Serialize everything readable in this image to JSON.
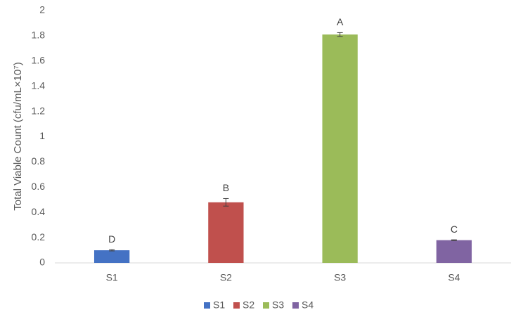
{
  "chart_data": {
    "type": "bar",
    "y_label": "Total Viable Count (cfu/mL×10⁷)",
    "categories": [
      "S1",
      "S2",
      "S3",
      "S4"
    ],
    "values": [
      0.1,
      0.48,
      1.81,
      0.18
    ],
    "errors": [
      0.005,
      0.03,
      0.015,
      0.003
    ],
    "annotations": [
      "D",
      "B",
      "A",
      "C"
    ],
    "colors": [
      "#4472c4",
      "#c0504d",
      "#9bbb59",
      "#8064a2"
    ],
    "ylim": [
      0,
      2
    ],
    "yticks": [
      0,
      0.2,
      0.4,
      0.6,
      0.8,
      1,
      1.2,
      1.4,
      1.6,
      1.8,
      2
    ],
    "grid": false,
    "legend": "bottom"
  }
}
